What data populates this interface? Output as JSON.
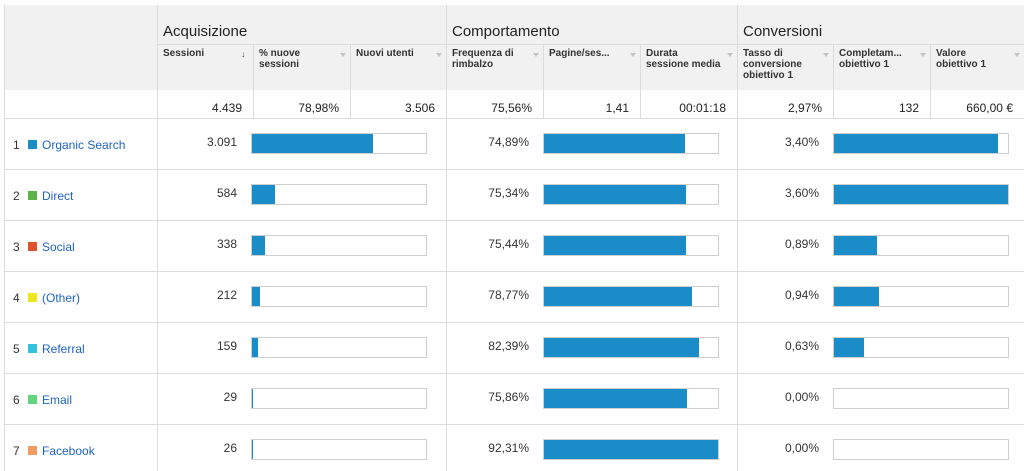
{
  "groups": {
    "acquisition": "Acquisizione",
    "behavior": "Comportamento",
    "conversions": "Conversioni"
  },
  "columns": {
    "sessions": "Sessioni",
    "new_sessions_pct": "% nuove sessioni",
    "new_users": "Nuovi utenti",
    "bounce_rate": "Frequenza di rimbalzo",
    "pages_per_session": "Pagine/ses...",
    "avg_session_duration": "Durata sessione media",
    "goal_conversion_rate": "Tasso di conversione obiettivo 1",
    "goal_completions": "Completam... obiettivo 1",
    "goal_value": "Valore obiettivo 1"
  },
  "icons": {
    "sort": "sort-down-arrow-icon",
    "menu": "caret-down-icon"
  },
  "totals": {
    "sessions": "4.439",
    "new_sessions_pct": "78,98%",
    "new_users": "3.506",
    "bounce_rate": "75,56%",
    "pages_per_session": "1,41",
    "avg_session_duration": "00:01:18",
    "goal_conversion_rate": "2,97%",
    "goal_completions": "132",
    "goal_value": "660,00 €"
  },
  "rows": [
    {
      "index": "1",
      "channel": "Organic Search",
      "color": "#1a8dc9",
      "sessions": "3.091",
      "sessions_share": 0.696,
      "bounce_rate": "74,89%",
      "bounce_share": 0.811,
      "conv_rate": "3,40%",
      "conv_share": 0.944
    },
    {
      "index": "2",
      "channel": "Direct",
      "color": "#59b34a",
      "sessions": "584",
      "sessions_share": 0.132,
      "bounce_rate": "75,34%",
      "bounce_share": 0.816,
      "conv_rate": "3,60%",
      "conv_share": 1.0
    },
    {
      "index": "3",
      "channel": "Social",
      "color": "#e0522d",
      "sessions": "338",
      "sessions_share": 0.076,
      "bounce_rate": "75,44%",
      "bounce_share": 0.817,
      "conv_rate": "0,89%",
      "conv_share": 0.247
    },
    {
      "index": "4",
      "channel": "(Other)",
      "color": "#ede61f",
      "sessions": "212",
      "sessions_share": 0.048,
      "bounce_rate": "78,77%",
      "bounce_share": 0.853,
      "conv_rate": "0,94%",
      "conv_share": 0.261
    },
    {
      "index": "5",
      "channel": "Referral",
      "color": "#30c2df",
      "sessions": "159",
      "sessions_share": 0.036,
      "bounce_rate": "82,39%",
      "bounce_share": 0.893,
      "conv_rate": "0,63%",
      "conv_share": 0.175
    },
    {
      "index": "6",
      "channel": "Email",
      "color": "#5dd67d",
      "sessions": "29",
      "sessions_share": 0.007,
      "bounce_rate": "75,86%",
      "bounce_share": 0.822,
      "conv_rate": "0,00%",
      "conv_share": 0
    },
    {
      "index": "7",
      "channel": "Facebook",
      "color": "#f39a62",
      "sessions": "26",
      "sessions_share": 0.006,
      "bounce_rate": "92,31%",
      "bounce_share": 1.0,
      "conv_rate": "0,00%",
      "conv_share": 0
    }
  ]
}
